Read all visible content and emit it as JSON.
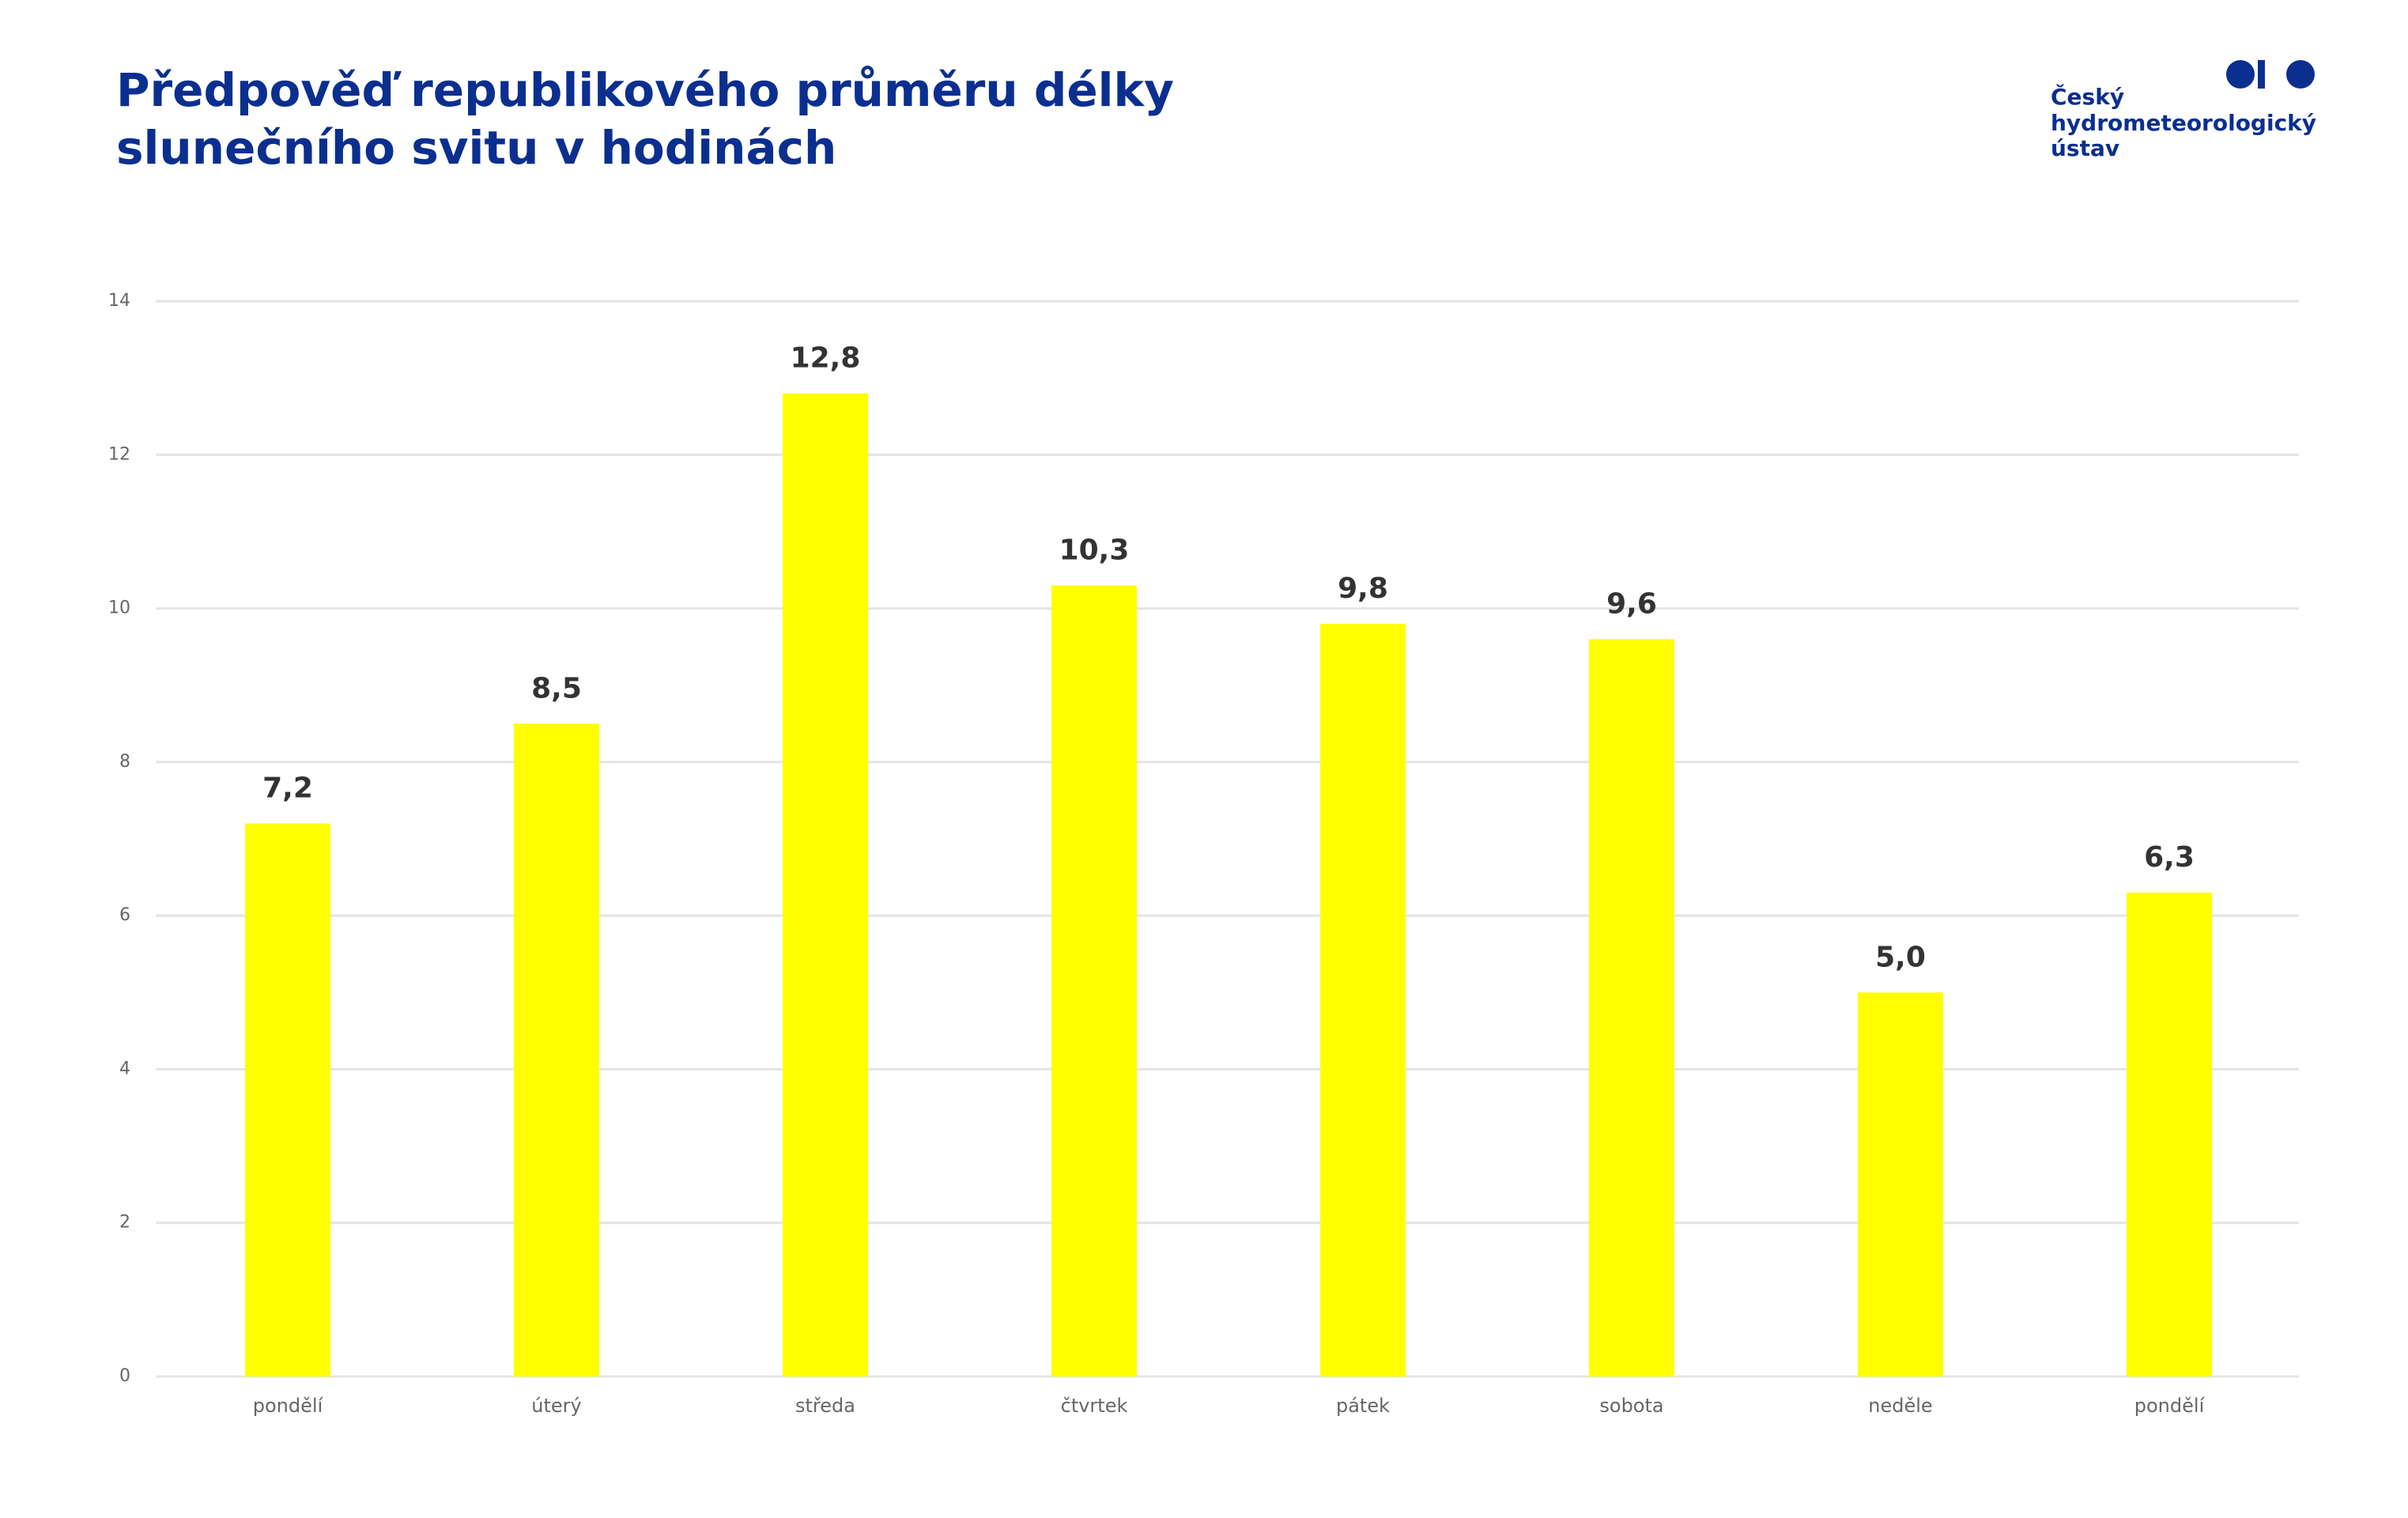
{
  "chart_data": {
    "type": "bar",
    "title": [
      "Předpověď republikového průměru délky",
      "slunečního svitu v hodinách"
    ],
    "categories": [
      "pondělí",
      "úterý",
      "středa",
      "čtvrtek",
      "pátek",
      "sobota",
      "neděle",
      "pondělí"
    ],
    "values": [
      7.2,
      8.5,
      12.8,
      10.3,
      9.8,
      9.6,
      5.0,
      6.3
    ],
    "value_labels": [
      "7,2",
      "8,5",
      "12,8",
      "10,3",
      "9,8",
      "9,6",
      "5,0",
      "6,3"
    ],
    "color": "#ffff00",
    "ylim": [
      0,
      14
    ],
    "yticks": [
      0,
      2,
      4,
      6,
      8,
      10,
      12,
      14
    ],
    "grid": true
  },
  "logo": {
    "lines": [
      "Český",
      "hydrometeorologický",
      "ústav"
    ]
  }
}
